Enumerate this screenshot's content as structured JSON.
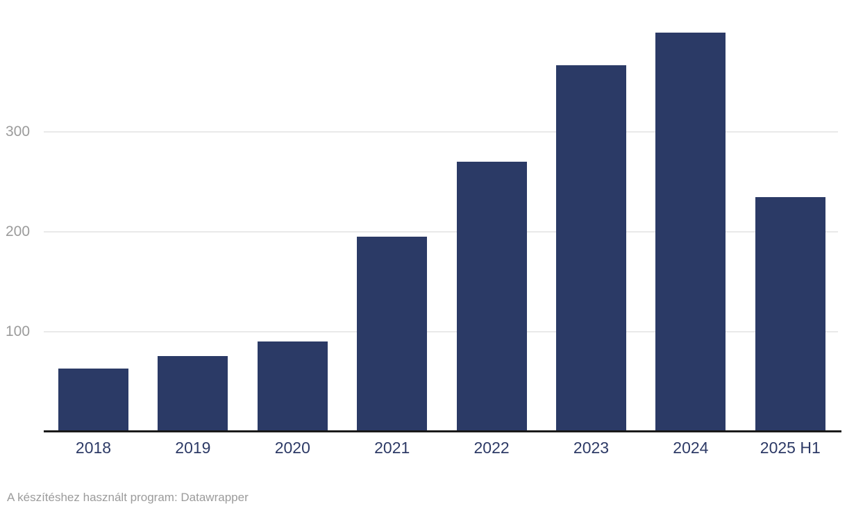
{
  "chart_data": {
    "type": "bar",
    "categories": [
      "2018",
      "2019",
      "2020",
      "2021",
      "2022",
      "2023",
      "2024",
      "2025 H1"
    ],
    "values": [
      63,
      76,
      90,
      195,
      270,
      367,
      399,
      235
    ],
    "title": "",
    "xlabel": "",
    "ylabel": "",
    "ylim": [
      0,
      400
    ],
    "yticks": [
      100,
      200,
      300
    ],
    "grid": "horizontal",
    "legend": "none",
    "bar_color": "#2b3a66",
    "x_label_color": "#2d3a66",
    "tick_label_color": "#9b9b9b",
    "gridline_color": "#e9e9e9",
    "axis_line_color": "#1a1a1a",
    "background_color": "#ffffff"
  },
  "footer": {
    "text": "A készítéshez használt program: Datawrapper"
  }
}
